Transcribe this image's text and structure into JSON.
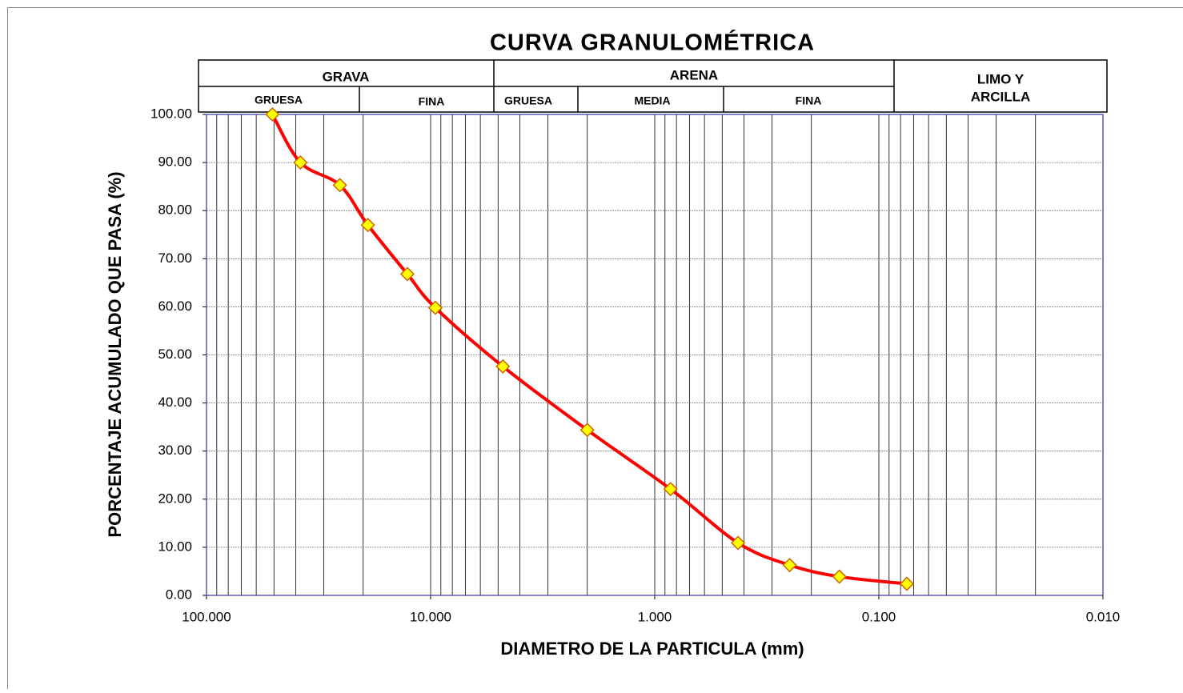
{
  "chart_data": {
    "type": "line",
    "title": "CURVA  GRANULOMÉTRICA",
    "xlabel": "DIAMETRO DE LA PARTICULA (mm)",
    "ylabel": "PORCENTAJE ACUMULADO QUE PASA (%)",
    "header": {
      "groups": [
        "GRAVA",
        "ARENA"
      ],
      "fines": [
        "LIMO Y",
        "ARCILLA"
      ],
      "subgroups": [
        "GRUESA",
        "FINA",
        "GRUESA",
        "MEDIA",
        "FINA"
      ]
    },
    "xscale": "log",
    "xreversed": true,
    "xminor": true,
    "grid": true,
    "xlim": [
      100,
      0.01
    ],
    "xticks": [
      {
        "value": 100,
        "label": "100.000"
      },
      {
        "value": 10,
        "label": "10.000"
      },
      {
        "value": 1,
        "label": "1.000"
      },
      {
        "value": 0.1,
        "label": "0.100"
      },
      {
        "value": 0.01,
        "label": "0.010"
      }
    ],
    "ylim": [
      0,
      100
    ],
    "yticks": [
      {
        "value": 0,
        "label": "0.00"
      },
      {
        "value": 10,
        "label": "10.00"
      },
      {
        "value": 20,
        "label": "20.00"
      },
      {
        "value": 30,
        "label": "30.00"
      },
      {
        "value": 40,
        "label": "40.00"
      },
      {
        "value": 50,
        "label": "50.00"
      },
      {
        "value": 60,
        "label": "60.00"
      },
      {
        "value": 70,
        "label": "70.00"
      },
      {
        "value": 80,
        "label": "80.00"
      },
      {
        "value": 90,
        "label": "90.00"
      },
      {
        "value": 100,
        "label": "100.00"
      }
    ],
    "x": [
      50.8,
      38.1,
      25.4,
      19.05,
      12.7,
      9.525,
      4.76,
      2.0,
      0.85,
      0.425,
      0.25,
      0.15,
      0.075
    ],
    "series": [
      {
        "color": "#ff0000",
        "marker_color": "#ffff00",
        "values": [
          100,
          90,
          85.3,
          77,
          66.8,
          59.8,
          47.6,
          34.4,
          22.1,
          10.9,
          6.3,
          3.9,
          2.4
        ]
      }
    ]
  }
}
